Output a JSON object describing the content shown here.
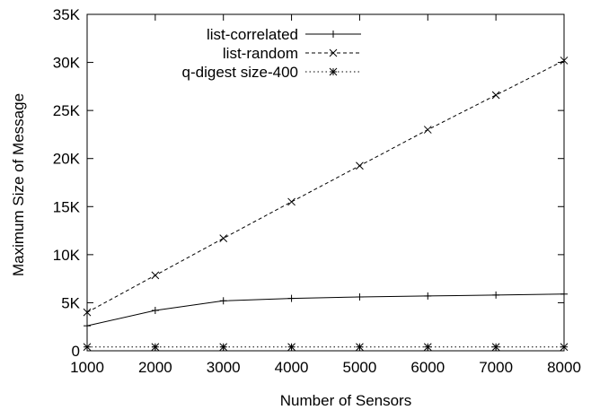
{
  "chart_data": {
    "type": "line",
    "xlabel": "Number of Sensors",
    "ylabel": "Maximum Size of Message",
    "xlim": [
      1000,
      8000
    ],
    "ylim": [
      0,
      35000
    ],
    "x_ticks": [
      1000,
      2000,
      3000,
      4000,
      5000,
      6000,
      7000,
      8000
    ],
    "x_tick_labels": [
      "1000",
      "2000",
      "3000",
      "4000",
      "5000",
      "6000",
      "7000",
      "8000"
    ],
    "y_ticks": [
      0,
      5000,
      10000,
      15000,
      20000,
      25000,
      30000,
      35000
    ],
    "y_tick_labels": [
      "0",
      "5K",
      "10K",
      "15K",
      "20K",
      "25K",
      "30K",
      "35K"
    ],
    "grid": false,
    "legend_position": "top-left",
    "x": [
      1000,
      2000,
      3000,
      4000,
      5000,
      6000,
      7000,
      8000
    ],
    "series": [
      {
        "name": "list-correlated",
        "values": [
          2600,
          4200,
          5200,
          5450,
          5600,
          5700,
          5800,
          5900
        ],
        "line_style": "solid",
        "marker": "plus"
      },
      {
        "name": "list-random",
        "values": [
          4000,
          7850,
          11700,
          15500,
          19250,
          23000,
          26600,
          30200
        ],
        "line_style": "dashed",
        "marker": "cross"
      },
      {
        "name": "q-digest size-400",
        "values": [
          400,
          400,
          400,
          400,
          400,
          400,
          400,
          400
        ],
        "line_style": "dotted",
        "marker": "star"
      }
    ]
  }
}
